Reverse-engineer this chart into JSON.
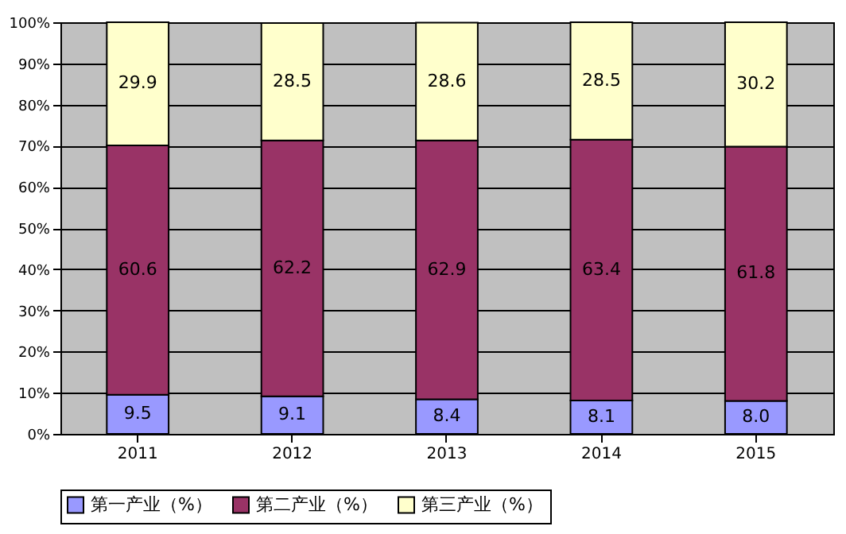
{
  "chart_data": {
    "type": "bar",
    "stacked": true,
    "categories": [
      "2011",
      "2012",
      "2013",
      "2014",
      "2015"
    ],
    "series": [
      {
        "name": "第一产业（%）",
        "color": "#9999ff",
        "values": [
          9.5,
          9.1,
          8.4,
          8.1,
          8.0
        ]
      },
      {
        "name": "第二产业（%）",
        "color": "#993366",
        "values": [
          60.6,
          62.2,
          62.9,
          63.4,
          61.8
        ]
      },
      {
        "name": "第三产业（%）",
        "color": "#ffffcc",
        "values": [
          29.9,
          28.5,
          28.6,
          28.5,
          30.2
        ]
      }
    ],
    "value_labels": [
      [
        "9.5",
        "9.1",
        "8.4",
        "8.1",
        "8.0"
      ],
      [
        "60.6",
        "62.2",
        "62.9",
        "63.4",
        "61.8"
      ],
      [
        "29.9",
        "28.5",
        "28.6",
        "28.5",
        "30.2"
      ]
    ],
    "ylim": [
      0,
      100
    ],
    "yticks": [
      {
        "value": 0,
        "label": "0%"
      },
      {
        "value": 10,
        "label": "10%"
      },
      {
        "value": 20,
        "label": "20%"
      },
      {
        "value": 30,
        "label": "30%"
      },
      {
        "value": 40,
        "label": "40%"
      },
      {
        "value": 50,
        "label": "50%"
      },
      {
        "value": 60,
        "label": "60%"
      },
      {
        "value": 70,
        "label": "70%"
      },
      {
        "value": 80,
        "label": "80%"
      },
      {
        "value": 90,
        "label": "90%"
      },
      {
        "value": 100,
        "label": "100%"
      }
    ],
    "grid": "y",
    "legend": "bottom"
  }
}
